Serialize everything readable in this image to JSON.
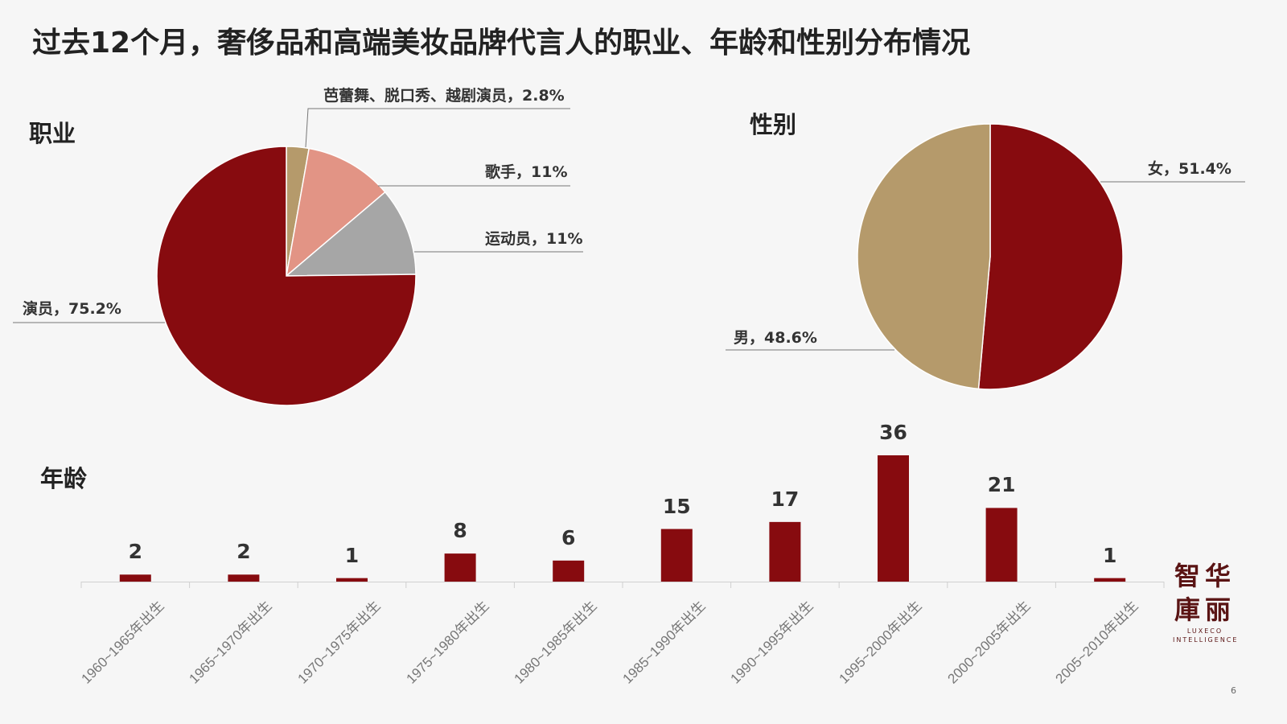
{
  "title": "过去12个月，奢侈品和高端美妆品牌代言人的职业、年龄和性别分布情况",
  "page_number": "6",
  "logo": {
    "cn_line1": "智华",
    "cn_line2": "庫丽",
    "en_line1": "LUXECO",
    "en_line2": "INTELLIGENCE"
  },
  "chart_data": [
    {
      "type": "pie",
      "title": "职业",
      "slices": [
        {
          "name": "芭蕾舞、脱口秀、越剧演员",
          "value": 2.8,
          "label": "芭蕾舞、脱口秀、越剧演员，2.8%",
          "color": "#b59a6b"
        },
        {
          "name": "歌手",
          "value": 11,
          "label": "歌手，11%",
          "color": "#e29485"
        },
        {
          "name": "运动员",
          "value": 11,
          "label": "运动员，11%",
          "color": "#a6a6a6"
        },
        {
          "name": "演员",
          "value": 75.2,
          "label": "演员，75.2%",
          "color": "#870b0f"
        }
      ]
    },
    {
      "type": "pie",
      "title": "性别",
      "slices": [
        {
          "name": "女",
          "value": 51.4,
          "label": "女，51.4%",
          "color": "#870b0f"
        },
        {
          "name": "男",
          "value": 48.6,
          "label": "男，48.6%",
          "color": "#b59a6b"
        }
      ]
    },
    {
      "type": "bar",
      "title": "年龄",
      "color": "#870b0f",
      "categories": [
        "1960~1965年出生",
        "1965~1970年出生",
        "1970~1975年出生",
        "1975~1980年出生",
        "1980~1985年出生",
        "1985~1990年出生",
        "1990~1995年出生",
        "1995~2000年出生",
        "2000~2005年出生",
        "2005~2010年出生"
      ],
      "values": [
        2,
        2,
        1,
        8,
        6,
        15,
        17,
        36,
        21,
        1
      ],
      "ylim": [
        0,
        36
      ]
    }
  ]
}
